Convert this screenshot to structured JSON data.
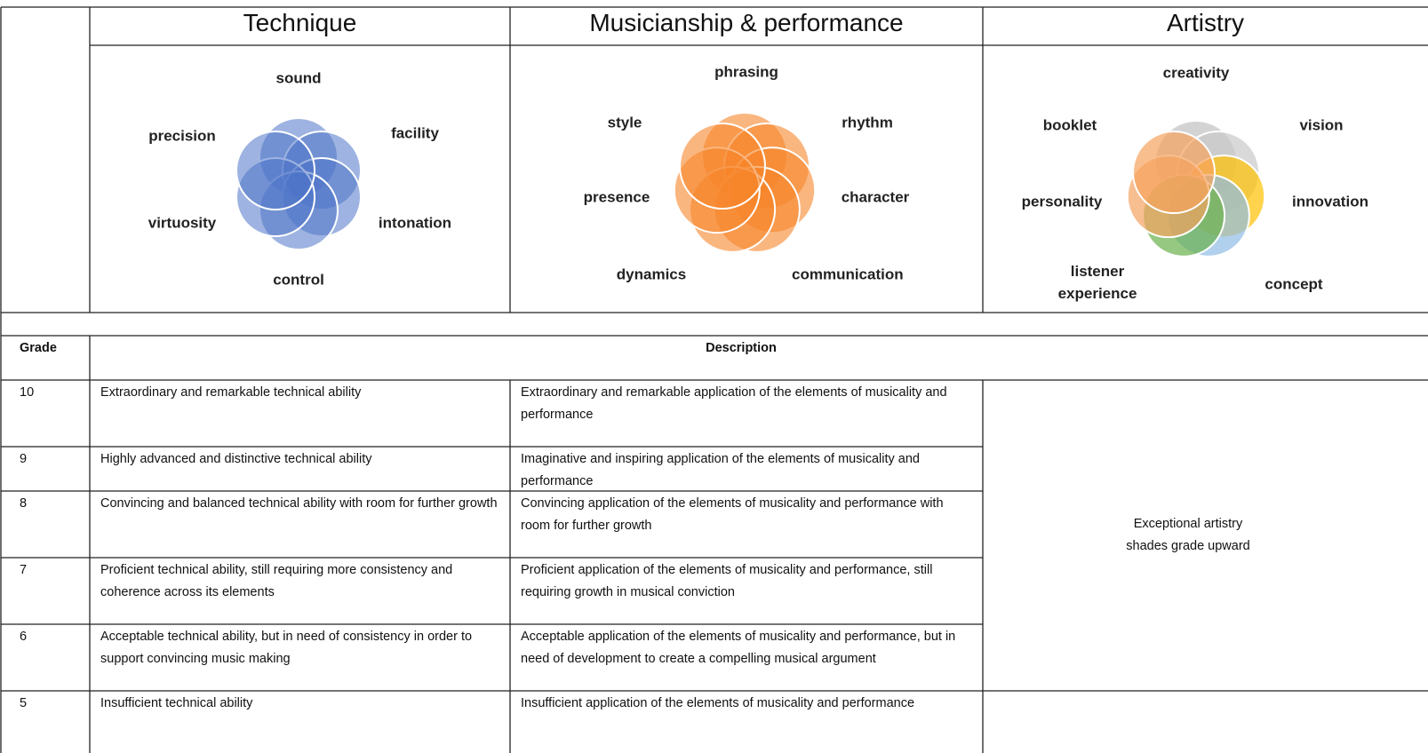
{
  "header": {
    "columns": [
      "Technique",
      "Musicianship & performance",
      "Artistry"
    ]
  },
  "diagrams": [
    {
      "labels": [
        "sound",
        "facility",
        "intonation",
        "control",
        "virtuosity",
        "precision"
      ]
    },
    {
      "labels": [
        "phrasing",
        "rhythm",
        "character",
        "communication",
        "dynamics",
        "presence",
        "style"
      ]
    },
    {
      "labels": [
        "creativity",
        "vision",
        "innovation",
        "concept",
        "listener experience",
        "personality",
        "booklet"
      ]
    }
  ],
  "table": {
    "headers": [
      "Grade",
      "Description"
    ],
    "rows": [
      {
        "grade": "10",
        "technique": "Extraordinary and remarkable technical ability",
        "musicianship": "Extraordinary and remarkable application of the elements of musicality and performance"
      },
      {
        "grade": "9",
        "technique": "Highly advanced and distinctive technical ability",
        "musicianship": "Imaginative and inspiring application of the elements of musicality and performance"
      },
      {
        "grade": "8",
        "technique": "Convincing and balanced technical ability with room for further growth",
        "musicianship": "Convincing application of the elements of musicality and performance with room for further growth"
      },
      {
        "grade": "7",
        "technique": "Proficient technical ability, still requiring more consistency and coherence across its elements",
        "musicianship": "Proficient application of the elements of musicality and performance, still requiring growth in musical conviction"
      },
      {
        "grade": "6",
        "technique": "Acceptable technical ability, but in need of consistency in order to support convincing music making",
        "musicianship": "Acceptable application of the elements of musicality and performance, but in need of development to create a compelling musical argument"
      },
      {
        "grade": "5",
        "technique": "Insufficient technical ability",
        "musicianship": "Insufficient application of the elements of musicality and performance"
      }
    ],
    "artistry_note": "Exceptional artistry shades grade upward"
  }
}
